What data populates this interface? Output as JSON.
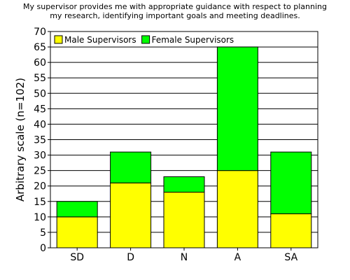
{
  "chart_data": {
    "type": "bar",
    "stacked": true,
    "title_lines": [
      "My supervisor provides me with appropriate guidance with respect to planning",
      "my research, identifying important goals and meeting deadlines."
    ],
    "xlabel": "",
    "ylabel": "Arbitrary scale (n=102)",
    "categories": [
      "SD",
      "D",
      "N",
      "A",
      "SA"
    ],
    "series": [
      {
        "name": "Male Supervisors",
        "color": "#ffff00",
        "values": [
          10,
          21,
          18,
          25,
          11
        ]
      },
      {
        "name": "Female Supervisors",
        "color": "#00ff00",
        "values": [
          5,
          10,
          5,
          40,
          20
        ]
      }
    ],
    "ylim": [
      0,
      70
    ],
    "ytick_step": 5,
    "yticks": [
      "0",
      "5",
      "10",
      "15",
      "20",
      "25",
      "30",
      "35",
      "40",
      "45",
      "50",
      "55",
      "60",
      "65",
      "70"
    ],
    "grid": true,
    "legend_position": "top-left"
  }
}
